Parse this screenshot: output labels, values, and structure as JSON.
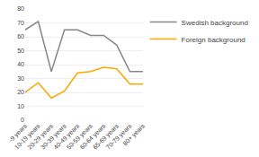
{
  "chart_data": {
    "type": "line",
    "categories": [
      "-9 years",
      "10-19 years",
      "20-29 years",
      "30-39 years",
      "40-49 years",
      "50-59 years",
      "60-64 years",
      "65-69 years",
      "70-79 years",
      "80+ years"
    ],
    "series": [
      {
        "name": "Swedish background",
        "color": "#888888",
        "values": [
          65,
          71,
          35,
          65,
          65,
          61,
          61,
          54,
          35,
          35
        ]
      },
      {
        "name": "Foreign background",
        "color": "#FFA500",
        "values": [
          20,
          27,
          16,
          21,
          34,
          35,
          38,
          37,
          26,
          26
        ]
      }
    ],
    "ylim": [
      0,
      80
    ],
    "yticks": [
      0,
      10,
      20,
      30,
      40,
      50,
      60,
      70,
      80
    ],
    "grid": true,
    "legend": "right"
  }
}
